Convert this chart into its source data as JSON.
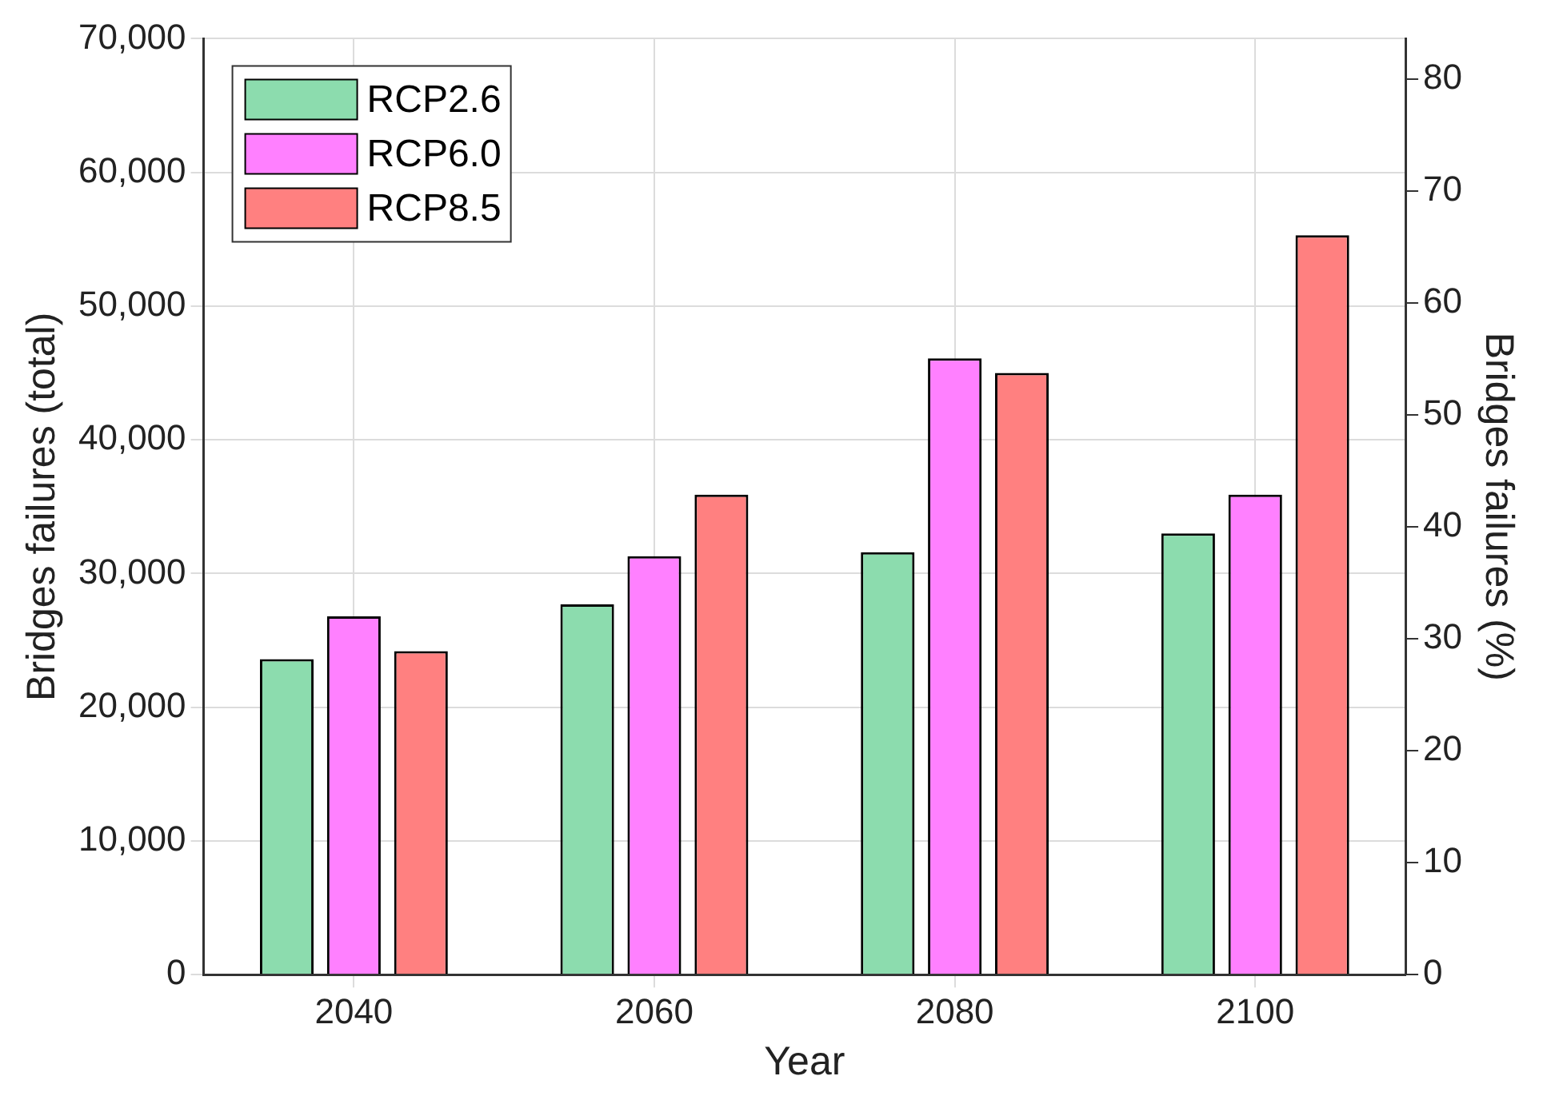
{
  "chart_data": {
    "type": "bar",
    "xlabel": "Year",
    "ylabel": "Bridges failures (total)",
    "y2label": "Bridges failures (%)",
    "categories": [
      "2040",
      "2060",
      "2080",
      "2100"
    ],
    "series": [
      {
        "name": "RCP2.6",
        "color": "#8cdcae",
        "values": [
          23600,
          27700,
          31600,
          33000
        ]
      },
      {
        "name": "RCP6.0",
        "color": "#ff80ff",
        "values": [
          26800,
          31300,
          46100,
          35900
        ]
      },
      {
        "name": "RCP8.5",
        "color": "#ff8080",
        "values": [
          24200,
          35900,
          45000,
          55300
        ]
      }
    ],
    "ylim": [
      0,
      70000
    ],
    "yticks": [
      {
        "value": 0,
        "label": "0"
      },
      {
        "value": 10000,
        "label": "10,000"
      },
      {
        "value": 20000,
        "label": "20,000"
      },
      {
        "value": 30000,
        "label": "30,000"
      },
      {
        "value": 40000,
        "label": "40,000"
      },
      {
        "value": 50000,
        "label": "50,000"
      },
      {
        "value": 60000,
        "label": "60,000"
      },
      {
        "value": 70000,
        "label": "70,000"
      }
    ],
    "y2lim": [
      0,
      83.6
    ],
    "y2ticks": [
      0,
      10,
      20,
      30,
      40,
      50,
      60,
      70,
      80
    ],
    "grid": true,
    "legend": "top left"
  }
}
